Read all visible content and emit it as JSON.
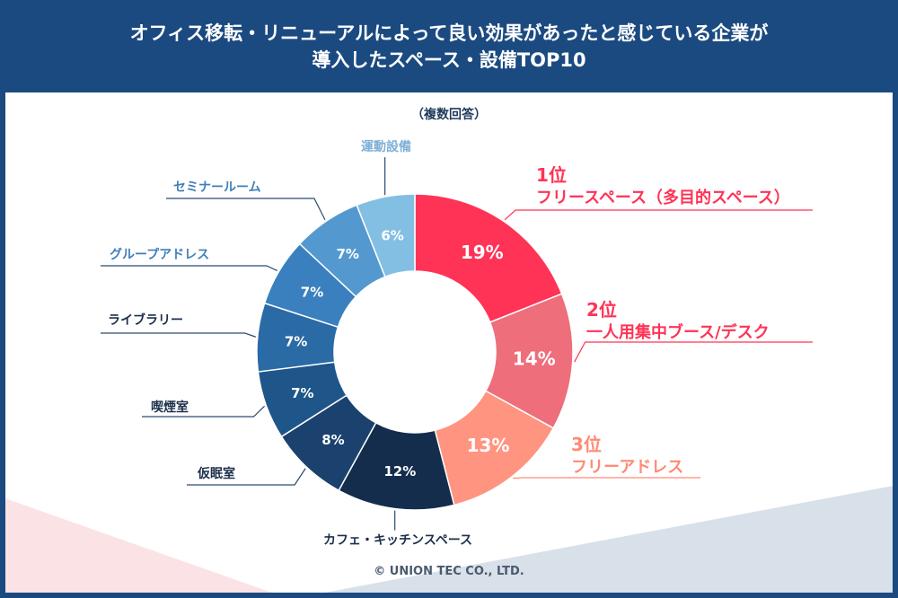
{
  "header": {
    "title_line1": "オフィス移転・リニューアルによって良い効果があったと感じている企業が",
    "title_line2": "導入したスペース・設備TOP10"
  },
  "subtitle": "（複数回答）",
  "copyright": "© UNION TEC CO., LTD.",
  "chart_data": {
    "type": "pie",
    "title": "オフィス移転・リニューアルによって良い効果があったと感じている企業が導入したスペース・設備TOP10",
    "subtitle": "（複数回答）",
    "donut": true,
    "unit": "%",
    "slices": [
      {
        "rank": "1位",
        "label": "フリースペース（多目的スペース）",
        "value": 19,
        "value_label": "19%",
        "color": "#ff3355"
      },
      {
        "rank": "2位",
        "label": "一人用集中ブース/デスク",
        "value": 14,
        "value_label": "14%",
        "color": "#ee6e7c"
      },
      {
        "rank": "3位",
        "label": "フリーアドレス",
        "value": 13,
        "value_label": "13%",
        "color": "#ff9480"
      },
      {
        "rank": "",
        "label": "カフェ・キッチンスペース",
        "value": 12,
        "value_label": "12%",
        "color": "#142d4d"
      },
      {
        "rank": "",
        "label": "仮眠室",
        "value": 8,
        "value_label": "8%",
        "color": "#1b426f"
      },
      {
        "rank": "",
        "label": "喫煙室",
        "value": 7,
        "value_label": "7%",
        "color": "#1f5689"
      },
      {
        "rank": "",
        "label": "ライブラリー",
        "value": 7,
        "value_label": "7%",
        "color": "#2a6aa5"
      },
      {
        "rank": "",
        "label": "グループアドレス",
        "value": 7,
        "value_label": "7%",
        "color": "#3a80bf"
      },
      {
        "rank": "",
        "label": "セミナールーム",
        "value": 7,
        "value_label": "7%",
        "color": "#5399cf"
      },
      {
        "rank": "",
        "label": "運動設備",
        "value": 6,
        "value_label": "6%",
        "color": "#83bfe3"
      }
    ],
    "colors": {
      "highlight_label": "#ff3355",
      "highlight_label_3": "#ff8a75",
      "dark_label": "#1d2f4a",
      "leader_line": "#2a4a70",
      "header_bg": "#1b4a80"
    }
  }
}
